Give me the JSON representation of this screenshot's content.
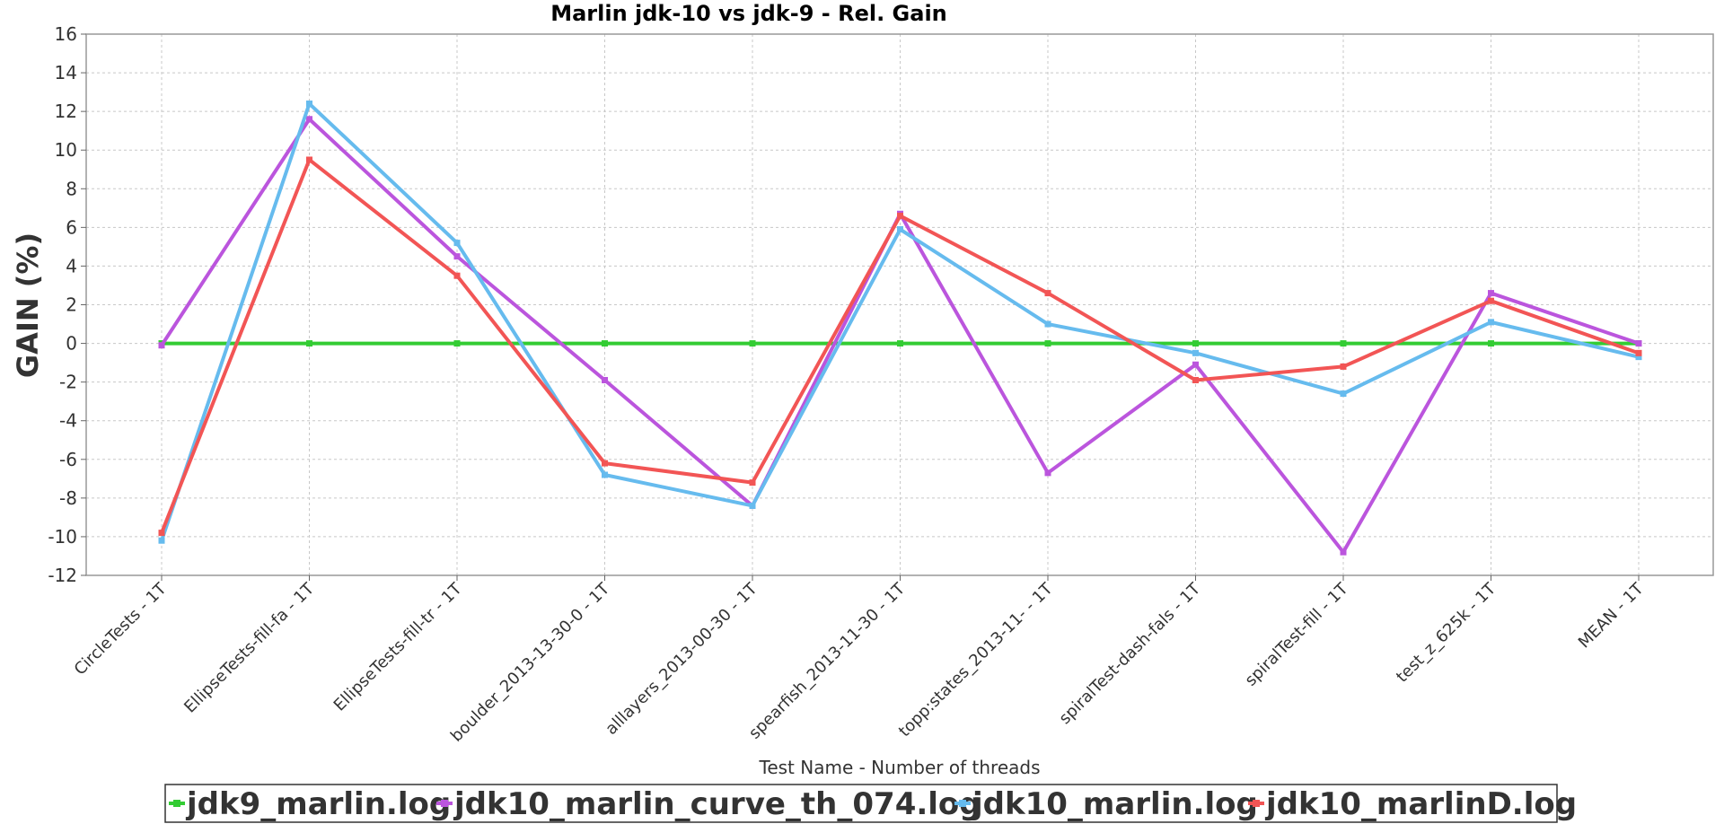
{
  "chart_data": {
    "type": "line",
    "title": "Marlin jdk-10 vs jdk-9 - Rel. Gain",
    "xlabel": "Test Name - Number of threads",
    "ylabel": "GAIN (%)",
    "ylim": [
      -12,
      16
    ],
    "yticks": [
      16,
      14,
      12,
      10,
      8,
      6,
      4,
      2,
      0,
      -2,
      -4,
      -6,
      -8,
      -10,
      -12
    ],
    "grid": true,
    "legend_position": "bottom",
    "categories": [
      "CircleTests - 1T",
      "EllipseTests-fill-fa - 1T",
      "EllipseTests-fill-tr - 1T",
      "boulder_2013-13-30-0 - 1T",
      "alllayers_2013-00-30 - 1T",
      "spearfish_2013-11-30 - 1T",
      "topp:states_2013-11- - 1T",
      "spiralTest-dash-fals - 1T",
      "spiralTest-fill - 1T",
      "test_z_625k - 1T",
      "MEAN - 1T"
    ],
    "series": [
      {
        "name": "jdk9_marlin.log",
        "color": "#33cc33",
        "values": [
          0,
          0,
          0,
          0,
          0,
          0,
          0,
          0,
          0,
          0,
          0
        ]
      },
      {
        "name": "jdk10_marlin_curve_th_074.log",
        "color": "#bb55dd",
        "values": [
          -0.1,
          11.6,
          4.5,
          -1.9,
          -8.4,
          6.7,
          -6.7,
          -1.1,
          -10.8,
          2.6,
          0.0
        ]
      },
      {
        "name": "jdk10_marlin.log",
        "color": "#66bbee",
        "values": [
          -10.2,
          12.4,
          5.2,
          -6.8,
          -8.4,
          5.9,
          1.0,
          -0.5,
          -2.6,
          1.1,
          -0.7
        ]
      },
      {
        "name": "jdk10_marlinD.log",
        "color": "#f25555",
        "values": [
          -9.8,
          9.5,
          3.5,
          -6.2,
          -7.2,
          6.6,
          2.6,
          -1.9,
          -1.2,
          2.2,
          -0.5
        ]
      }
    ]
  }
}
